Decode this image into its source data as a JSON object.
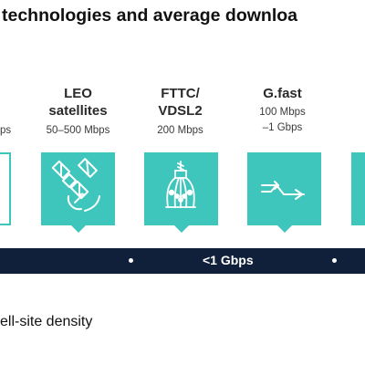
{
  "title": "technologies and average downloa",
  "left_partial_speed": "ps",
  "technologies": [
    {
      "name_line1": "LEO",
      "name_line2": "satellites",
      "speed_line1": "50–500 Mbps",
      "speed_line2": "",
      "icon": "satellite-icon"
    },
    {
      "name_line1": "FTTC/",
      "name_line2": "VDSL2",
      "speed_line1": "200 Mbps",
      "speed_line2": "",
      "icon": "cable-bundle-icon"
    },
    {
      "name_line1": "G.fast",
      "name_line2": "",
      "speed_line1": "100 Mbps",
      "speed_line2": "–1 Gbps",
      "icon": "signal-arrows-icon"
    }
  ],
  "band": {
    "label": "<1 Gbps"
  },
  "footnote": "ell-site density",
  "colors": {
    "tile": "#3ec6bd",
    "band": "#11203a"
  }
}
